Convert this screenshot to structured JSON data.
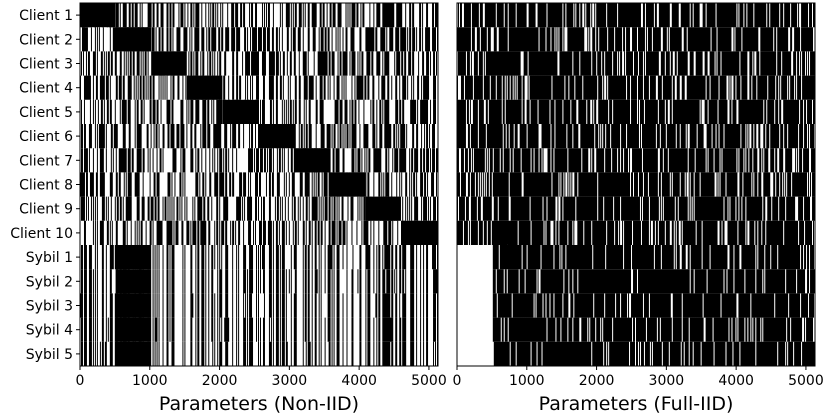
{
  "chart_data": [
    {
      "type": "heatmap",
      "title": "",
      "xlabel": "Parameters (Non-IID)",
      "ylabel": "",
      "xlim": [
        0,
        5130
      ],
      "xticks": [
        0,
        1000,
        2000,
        3000,
        4000,
        5000
      ],
      "tick_labels": [
        "0",
        "1000",
        "2000",
        "3000",
        "4000",
        "5000"
      ],
      "rows": [
        "Client 1",
        "Client 2",
        "Client 3",
        "Client 4",
        "Client 5",
        "Client 6",
        "Client 7",
        "Client 8",
        "Client 9",
        "Client 10",
        "Sybil 1",
        "Sybil 2",
        "Sybil 3",
        "Sybil 4",
        "Sybil 5"
      ],
      "colormap": [
        "#ffffff",
        "#000000"
      ],
      "blocks": [
        {
          "row": "Client 1",
          "x": [
            0,
            510
          ]
        },
        {
          "row": "Client 2",
          "x": [
            510,
            1020
          ]
        },
        {
          "row": "Client 3",
          "x": [
            1020,
            1530
          ]
        },
        {
          "row": "Client 4",
          "x": [
            1530,
            2040
          ]
        },
        {
          "row": "Client 5",
          "x": [
            2040,
            2560
          ]
        },
        {
          "row": "Client 6",
          "x": [
            2560,
            3070
          ]
        },
        {
          "row": "Client 7",
          "x": [
            3070,
            3580
          ]
        },
        {
          "row": "Client 8",
          "x": [
            3580,
            4090
          ]
        },
        {
          "row": "Client 9",
          "x": [
            4090,
            4600
          ]
        },
        {
          "row": "Client 10",
          "x": [
            4600,
            5130
          ]
        },
        {
          "row": "Sybil 1",
          "x": [
            510,
            1020
          ]
        },
        {
          "row": "Sybil 2",
          "x": [
            510,
            1020
          ]
        },
        {
          "row": "Sybil 3",
          "x": [
            510,
            1020
          ]
        },
        {
          "row": "Sybil 4",
          "x": [
            510,
            1020
          ]
        },
        {
          "row": "Sybil 5",
          "x": [
            510,
            1020
          ]
        }
      ]
    },
    {
      "type": "heatmap",
      "title": "",
      "xlabel": "Parameters (Full-IID)",
      "ylabel": "",
      "xlim": [
        0,
        5130
      ],
      "xticks": [
        0,
        1000,
        2000,
        3000,
        4000,
        5000
      ],
      "tick_labels": [
        "0",
        "1000",
        "2000",
        "3000",
        "4000",
        "5000"
      ],
      "rows": [
        "Client 1",
        "Client 2",
        "Client 3",
        "Client 4",
        "Client 5",
        "Client 6",
        "Client 7",
        "Client 8",
        "Client 9",
        "Client 10",
        "Sybil 1",
        "Sybil 2",
        "Sybil 3",
        "Sybil 4",
        "Sybil 5"
      ],
      "colormap": [
        "#ffffff",
        "#000000"
      ],
      "blank_regions": [
        {
          "rows": [
            "Sybil 1",
            "Sybil 2",
            "Sybil 3",
            "Sybil 4",
            "Sybil 5"
          ],
          "x": [
            0,
            510
          ]
        }
      ]
    }
  ]
}
